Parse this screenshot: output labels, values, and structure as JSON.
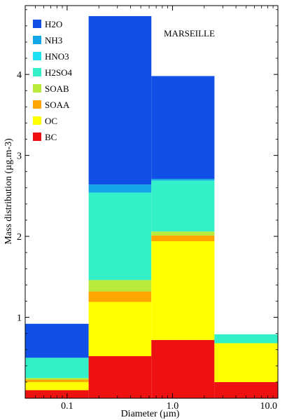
{
  "chart_data": {
    "type": "bar",
    "stacked": true,
    "title": "MARSEILLE",
    "xlabel": "Diameter (µm)",
    "ylabel": "Mass distribution (µg.m-3)",
    "x_scale": "log",
    "xlim": [
      0.04,
      10.0
    ],
    "ylim": [
      0,
      4.85
    ],
    "x_ticks": [
      {
        "value": 0.1,
        "label": "0.1"
      },
      {
        "value": 1.0,
        "label": "1.0"
      },
      {
        "value": 10.0,
        "label": "10.0"
      }
    ],
    "y_ticks": [
      1,
      2,
      3,
      4
    ],
    "legend_position": "top-left",
    "bins": [
      {
        "lower": 0.04,
        "upper": 0.16
      },
      {
        "lower": 0.16,
        "upper": 0.63
      },
      {
        "lower": 0.63,
        "upper": 2.5
      },
      {
        "lower": 2.5,
        "upper": 10.0
      }
    ],
    "series": [
      {
        "name": "BC",
        "color": "#ee1111",
        "values": [
          0.1,
          0.52,
          0.72,
          0.2
        ]
      },
      {
        "name": "OC",
        "color": "#ffff00",
        "values": [
          0.1,
          0.67,
          1.22,
          0.48
        ]
      },
      {
        "name": "SOAA",
        "color": "#ffa500",
        "values": [
          0.03,
          0.13,
          0.07,
          0.0
        ]
      },
      {
        "name": "SOAB",
        "color": "#b7ea3a",
        "values": [
          0.02,
          0.14,
          0.05,
          0.0
        ]
      },
      {
        "name": "H2SO4",
        "color": "#33f0c8",
        "values": [
          0.25,
          1.08,
          0.63,
          0.11
        ]
      },
      {
        "name": "HNO3",
        "color": "#1ee0f5",
        "values": [
          0.0,
          0.0,
          0.0,
          0.0
        ]
      },
      {
        "name": "NH3",
        "color": "#12a6e8",
        "values": [
          0.0,
          0.1,
          0.02,
          0.0
        ]
      },
      {
        "name": "H2O",
        "color": "#1050e6",
        "values": [
          0.42,
          2.08,
          1.27,
          0.0
        ]
      }
    ],
    "legend_order": [
      "H2O",
      "NH3",
      "HNO3",
      "H2SO4",
      "SOAB",
      "SOAA",
      "OC",
      "BC"
    ]
  }
}
